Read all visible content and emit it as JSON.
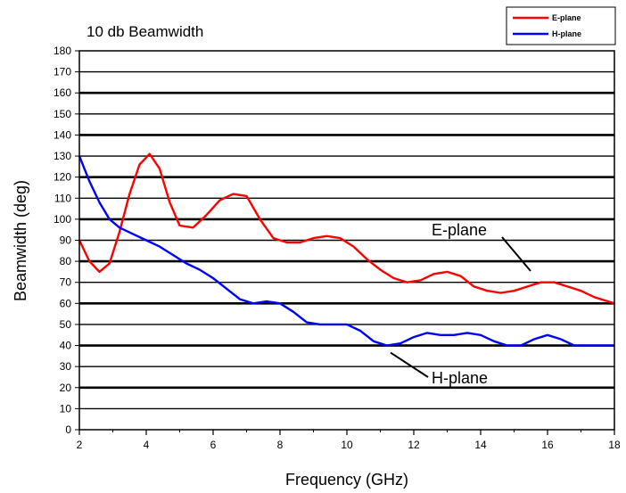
{
  "chart_data": {
    "type": "line",
    "title": "10 db Beamwidth",
    "xlabel": "Frequency (GHz)",
    "ylabel": "Beamwidth (deg)",
    "xlim": [
      2,
      18
    ],
    "ylim": [
      0,
      180
    ],
    "x_ticks": [
      2,
      4,
      6,
      8,
      10,
      12,
      14,
      16,
      18
    ],
    "x_tick_labels": [
      "2",
      "4",
      "6",
      "8",
      "10",
      "12",
      "14",
      "16",
      "18"
    ],
    "y_ticks": [
      0,
      10,
      20,
      30,
      40,
      50,
      60,
      70,
      80,
      90,
      100,
      110,
      120,
      130,
      140,
      150,
      160,
      170,
      180
    ],
    "y_tick_labels": [
      "0",
      "10",
      "20",
      "30",
      "40",
      "50",
      "60",
      "70",
      "80",
      "90",
      "100",
      "110",
      "120",
      "130",
      "140",
      "150",
      "160",
      "170",
      "180"
    ],
    "grid": "horizontal",
    "legend_position": "top-right",
    "series": [
      {
        "name": "E-plane",
        "color": "#ff0000",
        "x": [
          2.0,
          2.3,
          2.6,
          2.9,
          3.2,
          3.5,
          3.8,
          4.1,
          4.4,
          4.7,
          5.0,
          5.4,
          5.8,
          6.2,
          6.6,
          7.0,
          7.4,
          7.8,
          8.2,
          8.6,
          9.0,
          9.4,
          9.8,
          10.2,
          10.6,
          11.0,
          11.4,
          11.8,
          12.2,
          12.6,
          13.0,
          13.4,
          13.8,
          14.2,
          14.6,
          15.0,
          15.4,
          15.8,
          16.2,
          16.6,
          17.0,
          17.4,
          17.8,
          18.0
        ],
        "y": [
          90,
          80,
          75,
          79,
          94,
          112,
          126,
          131,
          124,
          108,
          97,
          96,
          102,
          109,
          112,
          111,
          100,
          91,
          89,
          89,
          91,
          92,
          91,
          87,
          81,
          76,
          72,
          70,
          71,
          74,
          75,
          73,
          68,
          66,
          65,
          66,
          68,
          70,
          70,
          68,
          66,
          63,
          61,
          60
        ]
      },
      {
        "name": "H-plane",
        "color": "#0000ff",
        "x": [
          2.0,
          2.3,
          2.6,
          2.9,
          3.2,
          3.6,
          4.0,
          4.4,
          4.8,
          5.2,
          5.6,
          6.0,
          6.4,
          6.8,
          7.2,
          7.6,
          8.0,
          8.4,
          8.8,
          9.2,
          9.6,
          10.0,
          10.4,
          10.8,
          11.2,
          11.6,
          12.0,
          12.4,
          12.8,
          13.2,
          13.6,
          14.0,
          14.4,
          14.8,
          15.2,
          15.6,
          16.0,
          16.4,
          16.8,
          17.2,
          17.6,
          18.0
        ],
        "y": [
          130,
          118,
          108,
          100,
          96,
          93,
          90,
          87,
          83,
          79,
          76,
          72,
          67,
          62,
          60,
          61,
          60,
          56,
          51,
          50,
          50,
          50,
          47,
          42,
          40,
          41,
          44,
          46,
          45,
          45,
          46,
          45,
          42,
          40,
          40,
          43,
          45,
          43,
          40,
          40,
          40,
          40
        ]
      }
    ],
    "annotations": [
      {
        "text": "E-plane",
        "points_to": [
          15.6,
          72
        ]
      },
      {
        "text": "H-plane",
        "points_to": [
          11.2,
          40
        ]
      }
    ]
  }
}
